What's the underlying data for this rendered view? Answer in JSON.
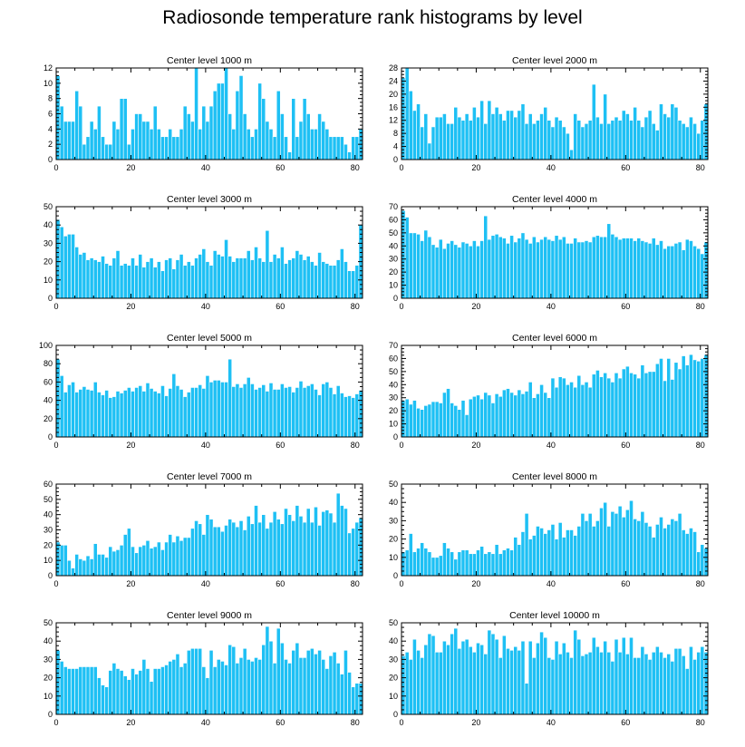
{
  "title": "Radiosonde temperature rank histograms by level",
  "chart_data": [
    {
      "type": "bar",
      "title": "Center level 1000 m",
      "xlim": [
        0,
        82
      ],
      "ylim": [
        0,
        12
      ],
      "xticks": [
        0,
        20,
        40,
        60,
        80
      ],
      "yticks": [
        0,
        2,
        4,
        6,
        8,
        10,
        12
      ],
      "values": [
        11,
        7,
        5,
        5,
        5,
        9,
        7,
        2,
        3,
        5,
        4,
        7,
        3,
        2,
        2,
        5,
        4,
        8,
        8,
        2,
        4,
        6,
        6,
        5,
        5,
        4,
        7,
        4,
        3,
        3,
        4,
        3,
        3,
        4,
        7,
        6,
        5,
        12,
        4,
        7,
        5,
        7,
        9,
        10,
        10,
        12,
        6,
        4,
        9,
        11,
        6,
        4,
        3,
        4,
        10,
        8,
        5,
        4,
        3,
        9,
        6,
        3,
        1,
        8,
        3,
        5,
        8,
        6,
        4,
        4,
        6,
        5,
        4,
        3,
        3,
        3,
        3,
        2,
        1,
        3,
        3,
        4
      ]
    },
    {
      "type": "bar",
      "title": "Center level 2000 m",
      "xlim": [
        0,
        82
      ],
      "ylim": [
        0,
        28
      ],
      "xticks": [
        0,
        20,
        40,
        60,
        80
      ],
      "yticks": [
        0,
        4,
        8,
        12,
        16,
        20,
        24,
        28
      ],
      "values": [
        25,
        28,
        21,
        15,
        17,
        10,
        14,
        5,
        10,
        13,
        13,
        14,
        11,
        11,
        16,
        13,
        12,
        14,
        12,
        16,
        13,
        18,
        11,
        18,
        14,
        16,
        14,
        12,
        15,
        15,
        13,
        15,
        17,
        11,
        14,
        11,
        12,
        14,
        16,
        12,
        10,
        13,
        12,
        10,
        8,
        3,
        14,
        12,
        10,
        11,
        12,
        23,
        13,
        11,
        20,
        11,
        12,
        13,
        12,
        15,
        14,
        12,
        16,
        12,
        10,
        13,
        15,
        11,
        9,
        17,
        14,
        13,
        17,
        16,
        12,
        11,
        10,
        13,
        11,
        8,
        12,
        17
      ]
    },
    {
      "type": "bar",
      "title": "Center level 3000 m",
      "xlim": [
        0,
        82
      ],
      "ylim": [
        0,
        50
      ],
      "xticks": [
        0,
        20,
        40,
        60,
        80
      ],
      "yticks": [
        0,
        10,
        20,
        30,
        40,
        50
      ],
      "values": [
        43,
        39,
        34,
        35,
        35,
        28,
        24,
        25,
        21,
        22,
        21,
        20,
        23,
        19,
        18,
        22,
        26,
        18,
        19,
        18,
        22,
        18,
        24,
        17,
        20,
        22,
        17,
        20,
        15,
        21,
        22,
        16,
        21,
        24,
        18,
        20,
        18,
        22,
        24,
        27,
        20,
        18,
        26,
        24,
        23,
        32,
        23,
        20,
        22,
        22,
        22,
        26,
        21,
        28,
        22,
        20,
        37,
        20,
        24,
        22,
        28,
        19,
        21,
        22,
        26,
        24,
        21,
        23,
        20,
        18,
        25,
        20,
        19,
        18,
        18,
        21,
        27,
        20,
        15,
        15,
        18,
        40
      ]
    },
    {
      "type": "bar",
      "title": "Center level 4000 m",
      "xlim": [
        0,
        82
      ],
      "ylim": [
        0,
        70
      ],
      "xticks": [
        0,
        20,
        40,
        60,
        80
      ],
      "yticks": [
        0,
        10,
        20,
        30,
        40,
        50,
        60,
        70
      ],
      "values": [
        67,
        62,
        50,
        50,
        49,
        44,
        52,
        47,
        41,
        39,
        45,
        38,
        42,
        44,
        41,
        39,
        43,
        42,
        40,
        44,
        40,
        44,
        63,
        45,
        48,
        49,
        47,
        46,
        42,
        48,
        43,
        46,
        50,
        45,
        42,
        47,
        43,
        45,
        47,
        45,
        44,
        48,
        45,
        47,
        42,
        42,
        46,
        43,
        43,
        44,
        43,
        47,
        48,
        47,
        47,
        57,
        49,
        47,
        45,
        46,
        46,
        46,
        44,
        46,
        44,
        43,
        42,
        46,
        41,
        44,
        38,
        40,
        40,
        42,
        43,
        37,
        45,
        44,
        40,
        38,
        34,
        43
      ]
    },
    {
      "type": "bar",
      "title": "Center level 5000 m",
      "xlim": [
        0,
        82
      ],
      "ylim": [
        0,
        100
      ],
      "xticks": [
        0,
        20,
        40,
        60,
        80
      ],
      "yticks": [
        0,
        20,
        40,
        60,
        80,
        100
      ],
      "values": [
        85,
        67,
        49,
        57,
        60,
        49,
        52,
        55,
        52,
        51,
        60,
        49,
        46,
        51,
        43,
        44,
        50,
        48,
        51,
        54,
        50,
        54,
        56,
        50,
        59,
        53,
        50,
        48,
        56,
        45,
        53,
        69,
        56,
        52,
        44,
        49,
        54,
        54,
        57,
        53,
        67,
        60,
        62,
        62,
        60,
        60,
        85,
        55,
        58,
        54,
        58,
        65,
        58,
        52,
        54,
        57,
        50,
        59,
        52,
        52,
        58,
        54,
        55,
        49,
        54,
        61,
        54,
        56,
        58,
        52,
        46,
        58,
        60,
        54,
        47,
        56,
        48,
        44,
        45,
        43,
        47,
        51
      ]
    },
    {
      "type": "bar",
      "title": "Center level 6000 m",
      "xlim": [
        0,
        82
      ],
      "ylim": [
        0,
        70
      ],
      "xticks": [
        0,
        20,
        40,
        60,
        80
      ],
      "yticks": [
        0,
        10,
        20,
        30,
        40,
        50,
        60,
        70
      ],
      "values": [
        28,
        29,
        25,
        28,
        22,
        21,
        24,
        25,
        27,
        27,
        26,
        34,
        37,
        26,
        24,
        21,
        28,
        17,
        29,
        31,
        32,
        29,
        34,
        32,
        26,
        33,
        31,
        36,
        37,
        34,
        32,
        36,
        33,
        35,
        42,
        30,
        33,
        40,
        34,
        30,
        45,
        38,
        46,
        45,
        40,
        42,
        38,
        47,
        40,
        42,
        38,
        48,
        51,
        46,
        49,
        45,
        42,
        49,
        45,
        52,
        54,
        49,
        48,
        45,
        55,
        49,
        50,
        50,
        56,
        60,
        43,
        60,
        44,
        57,
        52,
        62,
        55,
        63,
        59,
        58,
        60,
        63
      ]
    },
    {
      "type": "bar",
      "title": "Center level 7000 m",
      "xlim": [
        0,
        82
      ],
      "ylim": [
        0,
        60
      ],
      "xticks": [
        0,
        20,
        40,
        60,
        80
      ],
      "yticks": [
        0,
        10,
        20,
        30,
        40,
        50,
        60
      ],
      "values": [
        22,
        20,
        20,
        10,
        5,
        14,
        11,
        10,
        13,
        11,
        21,
        14,
        14,
        12,
        19,
        16,
        17,
        20,
        27,
        31,
        19,
        15,
        19,
        20,
        23,
        18,
        19,
        22,
        17,
        22,
        27,
        22,
        26,
        23,
        25,
        25,
        31,
        36,
        34,
        27,
        40,
        37,
        32,
        32,
        29,
        33,
        37,
        35,
        32,
        36,
        30,
        39,
        34,
        46,
        35,
        40,
        31,
        35,
        42,
        37,
        34,
        44,
        40,
        36,
        46,
        39,
        35,
        44,
        35,
        45,
        33,
        42,
        43,
        41,
        35,
        54,
        46,
        44,
        28,
        31,
        35,
        38
      ]
    },
    {
      "type": "bar",
      "title": "Center level 8000 m",
      "xlim": [
        0,
        82
      ],
      "ylim": [
        0,
        50
      ],
      "xticks": [
        0,
        20,
        40,
        60,
        80
      ],
      "yticks": [
        0,
        10,
        20,
        30,
        40,
        50
      ],
      "values": [
        13,
        14,
        23,
        13,
        15,
        18,
        15,
        13,
        10,
        10,
        11,
        18,
        15,
        13,
        9,
        13,
        14,
        14,
        12,
        12,
        14,
        16,
        12,
        13,
        12,
        17,
        12,
        14,
        15,
        14,
        21,
        17,
        24,
        34,
        20,
        22,
        27,
        26,
        23,
        25,
        28,
        20,
        29,
        21,
        25,
        25,
        22,
        27,
        34,
        30,
        34,
        27,
        30,
        37,
        40,
        27,
        35,
        34,
        38,
        32,
        36,
        41,
        31,
        30,
        35,
        29,
        27,
        21,
        28,
        32,
        26,
        28,
        31,
        30,
        34,
        25,
        23,
        26,
        24,
        13,
        17,
        15
      ]
    },
    {
      "type": "bar",
      "title": "Center level 9000 m",
      "xlim": [
        0,
        82
      ],
      "ylim": [
        0,
        50
      ],
      "xticks": [
        0,
        20,
        40,
        60,
        80
      ],
      "yticks": [
        0,
        10,
        20,
        30,
        40,
        50
      ],
      "values": [
        35,
        29,
        26,
        25,
        25,
        25,
        26,
        26,
        26,
        26,
        26,
        20,
        16,
        15,
        24,
        28,
        25,
        24,
        21,
        19,
        25,
        22,
        24,
        30,
        25,
        18,
        25,
        25,
        26,
        27,
        29,
        30,
        33,
        26,
        28,
        35,
        36,
        36,
        36,
        26,
        20,
        35,
        26,
        30,
        29,
        27,
        38,
        37,
        28,
        31,
        36,
        30,
        29,
        31,
        30,
        38,
        48,
        40,
        28,
        47,
        39,
        30,
        28,
        35,
        39,
        31,
        31,
        35,
        36,
        33,
        35,
        30,
        25,
        32,
        34,
        28,
        22,
        35,
        23,
        15,
        17,
        17
      ]
    },
    {
      "type": "bar",
      "title": "Center level 10000 m",
      "xlim": [
        0,
        82
      ],
      "ylim": [
        0,
        50
      ],
      "xticks": [
        0,
        20,
        40,
        60,
        80
      ],
      "yticks": [
        0,
        10,
        20,
        30,
        40,
        50
      ],
      "values": [
        32,
        34,
        30,
        41,
        35,
        31,
        38,
        44,
        43,
        34,
        34,
        40,
        38,
        44,
        47,
        36,
        40,
        41,
        37,
        34,
        39,
        38,
        33,
        46,
        44,
        41,
        31,
        43,
        36,
        35,
        37,
        35,
        40,
        17,
        40,
        31,
        39,
        45,
        42,
        31,
        30,
        40,
        33,
        39,
        34,
        31,
        46,
        41,
        32,
        33,
        34,
        42,
        37,
        34,
        40,
        34,
        29,
        41,
        34,
        42,
        33,
        42,
        31,
        31,
        37,
        33,
        30,
        34,
        37,
        34,
        31,
        33,
        29,
        36,
        36,
        32,
        25,
        37,
        30,
        34,
        37,
        34
      ]
    }
  ]
}
